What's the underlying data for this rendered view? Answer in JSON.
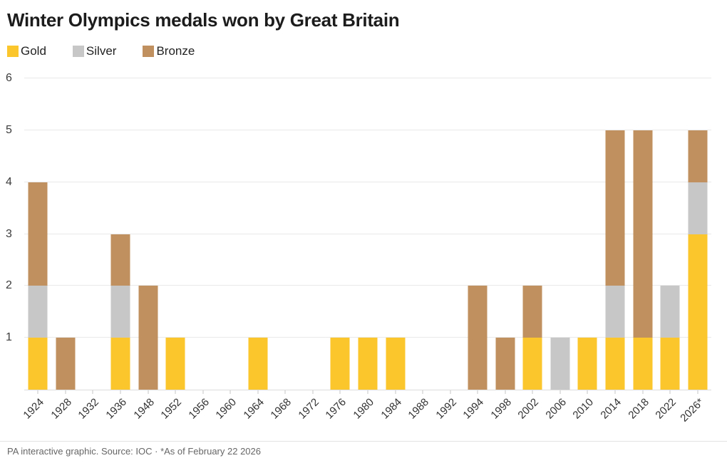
{
  "chart_data": {
    "type": "bar",
    "stacked": true,
    "title": "Winter Olympics medals won by Great Britain",
    "categories": [
      "1924",
      "1928",
      "1932",
      "1936",
      "1948",
      "1952",
      "1956",
      "1960",
      "1964",
      "1968",
      "1972",
      "1976",
      "1980",
      "1984",
      "1988",
      "1992",
      "1994",
      "1998",
      "2002",
      "2006",
      "2010",
      "2014",
      "2018",
      "2022",
      "2026*"
    ],
    "series": [
      {
        "name": "Gold",
        "color": "#FBC62B",
        "values": [
          1,
          0,
          0,
          1,
          0,
          1,
          0,
          0,
          1,
          0,
          0,
          1,
          1,
          1,
          0,
          0,
          0,
          0,
          1,
          0,
          1,
          1,
          1,
          1,
          3
        ]
      },
      {
        "name": "Silver",
        "color": "#C7C7C7",
        "values": [
          1,
          0,
          0,
          1,
          0,
          0,
          0,
          0,
          0,
          0,
          0,
          0,
          0,
          0,
          0,
          0,
          0,
          0,
          0,
          1,
          0,
          1,
          0,
          1,
          1
        ]
      },
      {
        "name": "Bronze",
        "color": "#C0905F",
        "values": [
          2,
          1,
          0,
          1,
          2,
          0,
          0,
          0,
          0,
          0,
          0,
          0,
          0,
          0,
          0,
          0,
          2,
          1,
          1,
          0,
          0,
          3,
          4,
          0,
          1
        ]
      }
    ],
    "xlabel": "",
    "ylabel": "",
    "ylim": [
      0,
      6
    ],
    "yticks": [
      1,
      2,
      3,
      4,
      5,
      6
    ],
    "grid": true,
    "legend_position": "top-left"
  },
  "footer": {
    "text": "PA interactive graphic. Source: IOC · *As of February 22 2026"
  }
}
